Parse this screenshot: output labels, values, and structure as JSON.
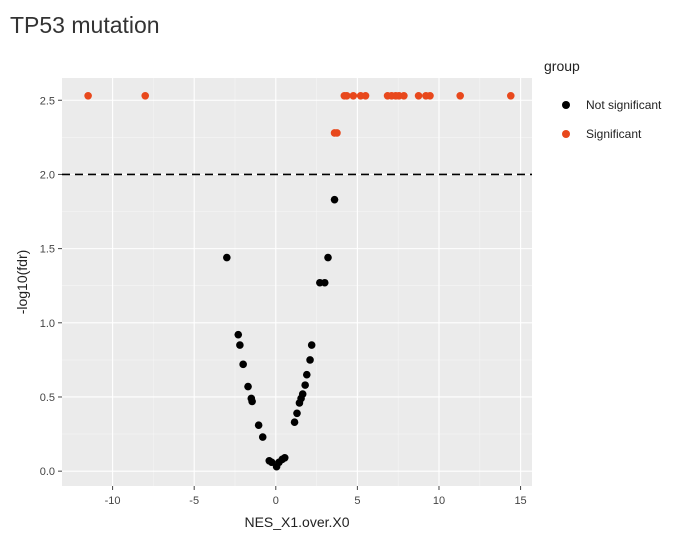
{
  "title": "TP53 mutation",
  "legend": {
    "title": "group",
    "items": [
      {
        "label": "Not significant",
        "color": "#000000"
      },
      {
        "label": "Significant",
        "color": "#e8481c"
      }
    ]
  },
  "chart_data": {
    "type": "scatter",
    "xlabel": "NES_X1.over.X0",
    "ylabel": "-log10(fdr)",
    "xlim": [
      -13.1,
      15.7
    ],
    "ylim": [
      -0.1,
      2.65
    ],
    "xticks": [
      -10,
      -5,
      0,
      5,
      10,
      15
    ],
    "yticks": [
      0.0,
      0.5,
      1.0,
      1.5,
      2.0,
      2.5
    ],
    "ytick_labels": [
      "0.0",
      "0.5",
      "1.0",
      "1.5",
      "2.0",
      "2.5"
    ],
    "threshold_y": 2.0,
    "grid": true,
    "legend_position": "right",
    "series": [
      {
        "name": "Not significant",
        "color": "#000000",
        "x": [
          -3.0,
          -2.3,
          -2.2,
          -2.0,
          -1.7,
          -1.5,
          -1.45,
          -1.05,
          -0.8,
          -0.4,
          -0.25,
          0.05,
          0.2,
          0.4,
          0.55,
          1.15,
          1.3,
          1.45,
          1.55,
          1.65,
          1.8,
          1.9,
          2.1,
          2.2,
          2.7,
          3.0,
          3.2,
          3.6
        ],
        "y": [
          1.44,
          0.92,
          0.85,
          0.72,
          0.57,
          0.49,
          0.47,
          0.31,
          0.23,
          0.07,
          0.06,
          0.03,
          0.06,
          0.08,
          0.09,
          0.33,
          0.39,
          0.46,
          0.49,
          0.52,
          0.58,
          0.65,
          0.75,
          0.85,
          1.27,
          1.27,
          1.44,
          1.83
        ]
      },
      {
        "name": "Significant",
        "color": "#e8481c",
        "x": [
          -11.5,
          -8.0,
          3.6,
          3.75,
          4.2,
          4.35,
          4.75,
          5.2,
          5.5,
          6.85,
          7.1,
          7.35,
          7.55,
          7.85,
          8.75,
          9.2,
          9.45,
          11.3,
          14.4
        ],
        "y": [
          2.53,
          2.53,
          2.28,
          2.28,
          2.53,
          2.53,
          2.53,
          2.53,
          2.53,
          2.53,
          2.53,
          2.53,
          2.53,
          2.53,
          2.53,
          2.53,
          2.53,
          2.53,
          2.53
        ]
      }
    ]
  }
}
